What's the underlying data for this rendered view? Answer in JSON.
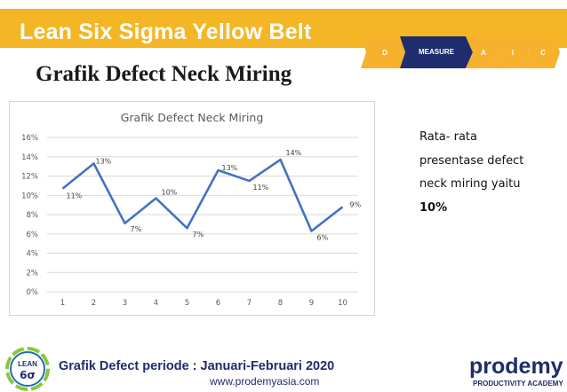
{
  "header": {
    "title": "Lean Six Sigma Yellow Belt",
    "steps": [
      "D",
      "MEASURE",
      "A",
      "I",
      "C"
    ],
    "active_step": "MEASURE",
    "colors": {
      "bar": "#f4b624",
      "active": "#1f2d6e",
      "inactive": "#f6b12d"
    }
  },
  "slide_title": "Grafik Defect Neck Miring",
  "chart_data": {
    "type": "line",
    "title": "Grafik Defect Neck Miring",
    "x": [
      1,
      2,
      3,
      4,
      5,
      6,
      7,
      8,
      9,
      10
    ],
    "series": [
      {
        "values": [
          0.107,
          0.133,
          0.071,
          0.097,
          0.066,
          0.126,
          0.115,
          0.137,
          0.063,
          0.088
        ],
        "data_labels": [
          "11%",
          "13%",
          "7%",
          "10%",
          "7%",
          "13%",
          "11%",
          "14%",
          "6%",
          "9%"
        ],
        "color": "#4472c4"
      }
    ],
    "y_ticks": [
      "0%",
      "2%",
      "4%",
      "6%",
      "8%",
      "10%",
      "12%",
      "14%",
      "16%"
    ],
    "ylim": [
      0,
      0.16
    ],
    "xlabel": "",
    "ylabel": "",
    "grid": true
  },
  "summary": {
    "lines": [
      "Rata- rata",
      "presentase defect",
      "neck miring yaitu"
    ],
    "value": "10%"
  },
  "footer": {
    "title": "Grafik Defect periode : Januari-Februari 2020",
    "url": "www.prodemyasia.com",
    "logo_left_text": [
      "LEAN",
      "6σ"
    ],
    "brand": "prodemy",
    "brand_sub": "PRODUCTIVITY ACADEMY"
  }
}
